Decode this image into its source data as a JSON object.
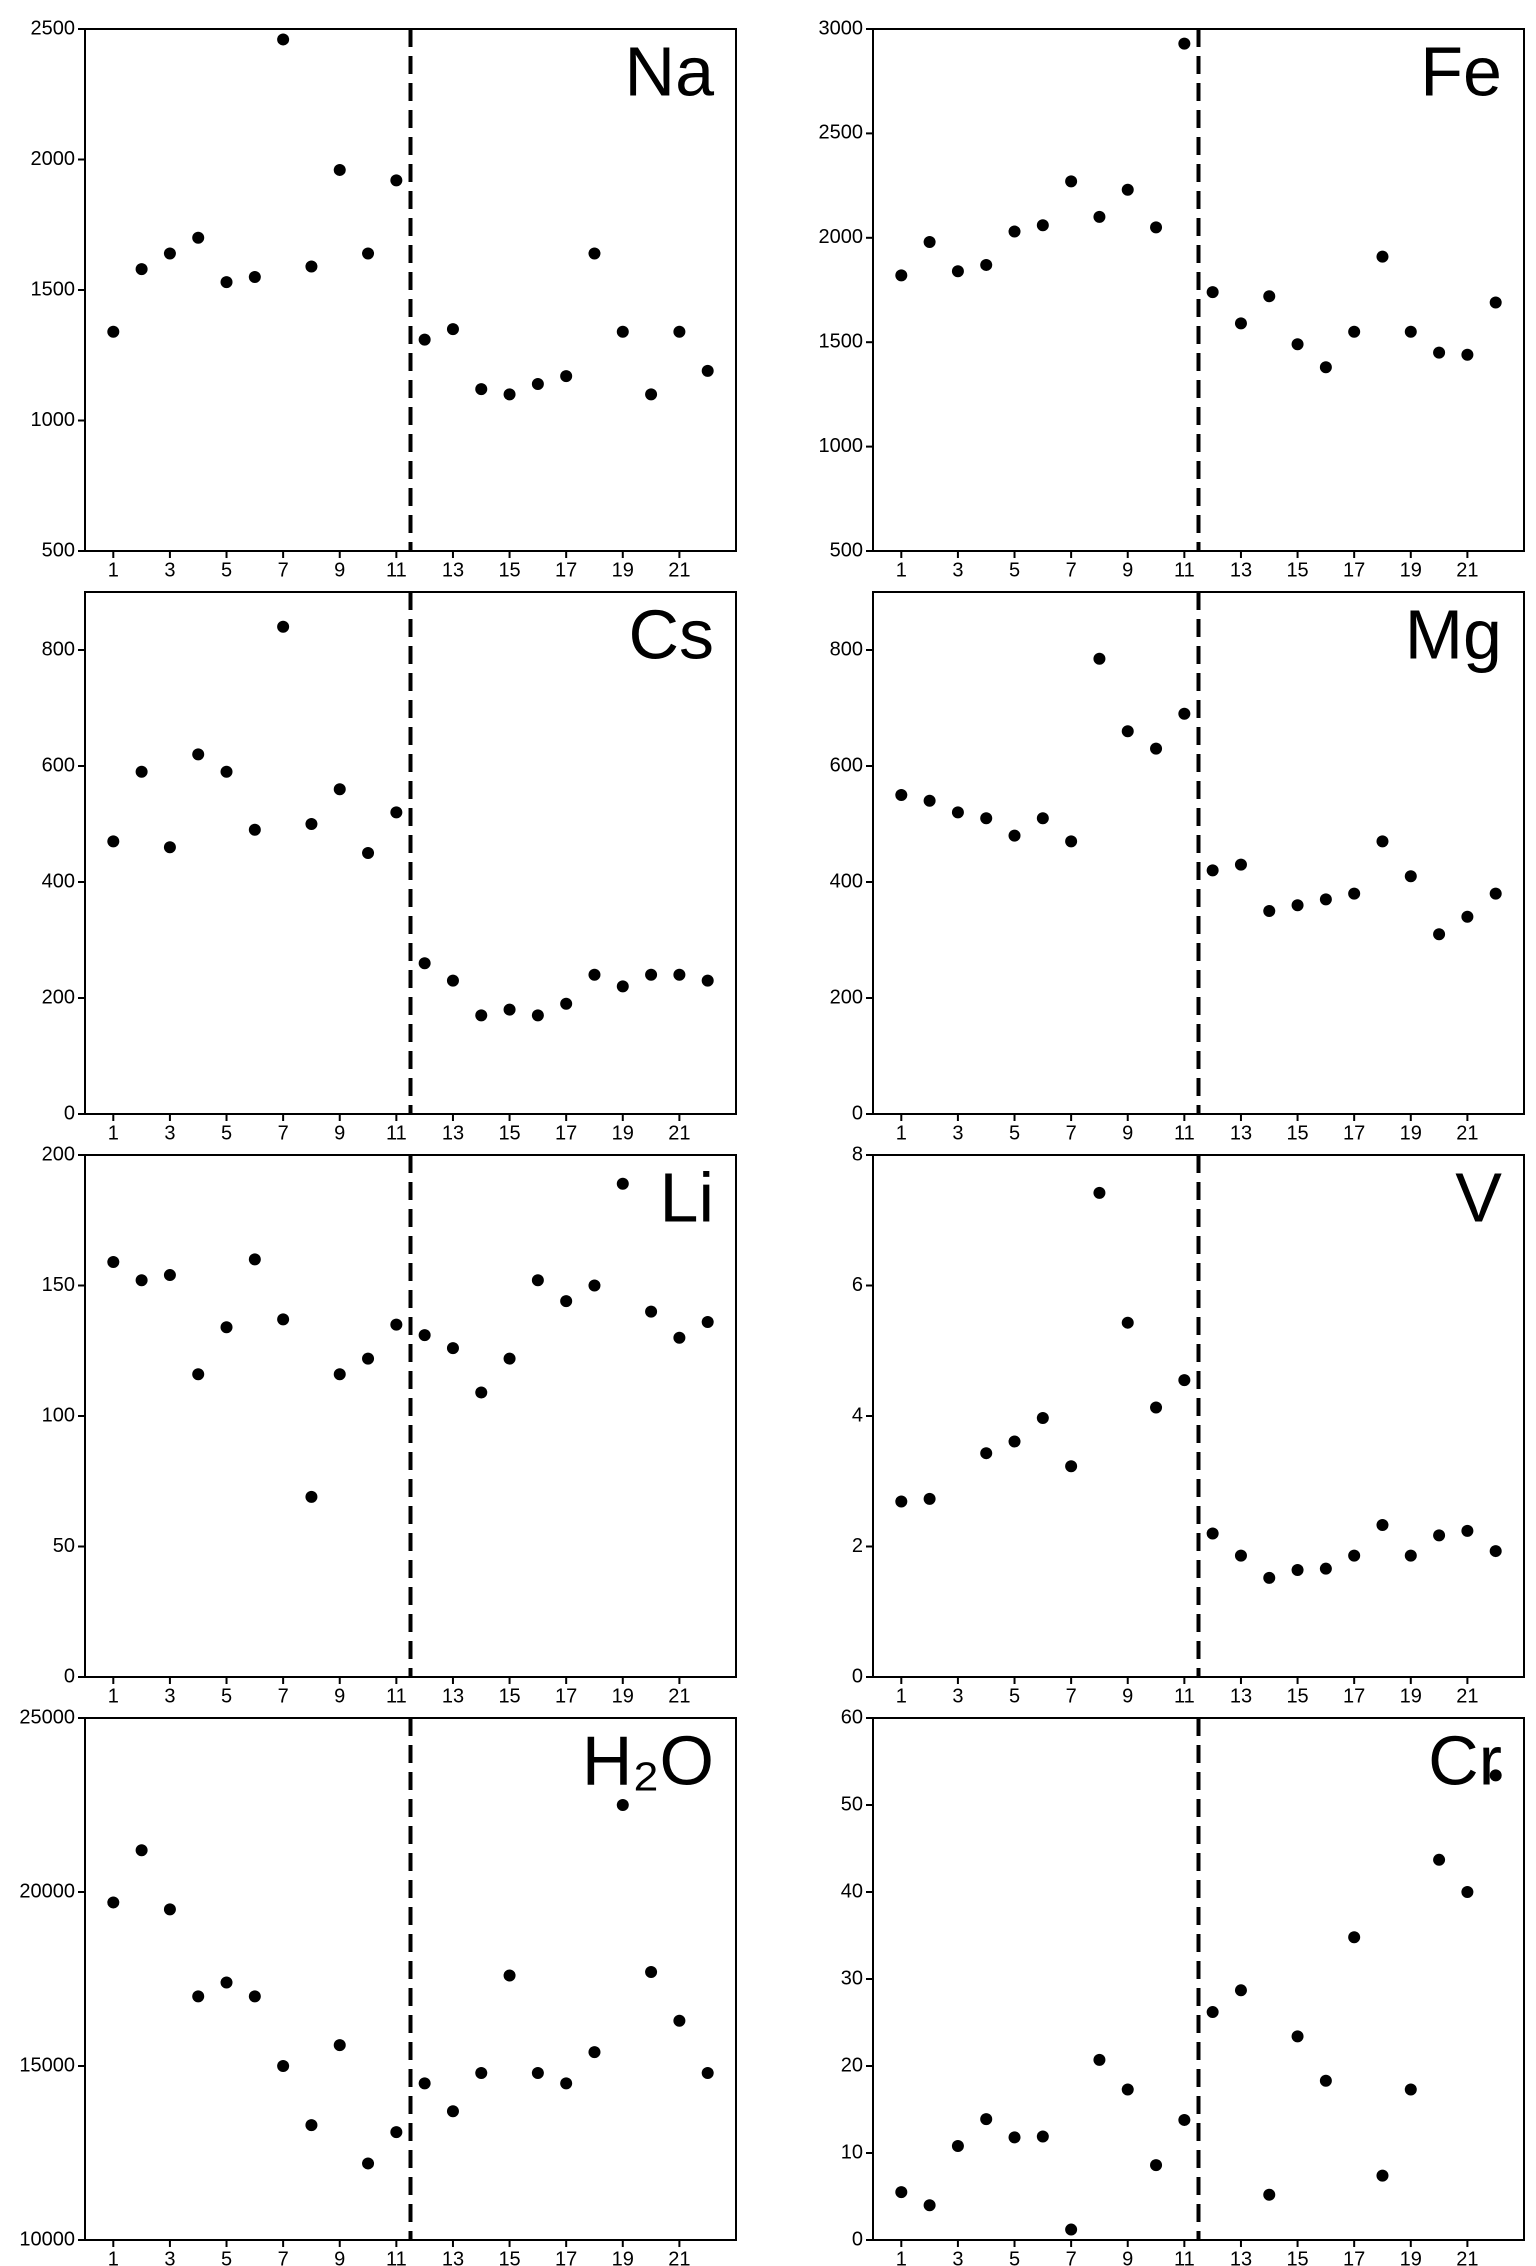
{
  "chart_data": [
    {
      "type": "scatter",
      "title": "Na",
      "color": "#000000",
      "x": [
        1,
        2,
        3,
        4,
        5,
        6,
        7,
        8,
        9,
        10,
        11,
        12,
        13,
        14,
        15,
        16,
        17,
        18,
        19,
        20,
        21,
        22
      ],
      "values": [
        1340,
        1580,
        1640,
        1700,
        1530,
        1550,
        2460,
        1590,
        1960,
        1640,
        1920,
        1310,
        1350,
        1120,
        1100,
        1140,
        1170,
        1640,
        1340,
        1100,
        1340,
        1190
      ],
      "xlim": [
        0,
        23
      ],
      "xticks": [
        1,
        3,
        5,
        7,
        9,
        11,
        13,
        15,
        17,
        19,
        21
      ],
      "ylim": [
        500,
        2500
      ],
      "yticks": [
        500,
        1000,
        1500,
        2000,
        2500
      ],
      "vline": 11.5
    },
    {
      "type": "scatter",
      "title": "Fe",
      "color": "#000000",
      "x": [
        1,
        2,
        3,
        4,
        5,
        6,
        7,
        8,
        9,
        10,
        11,
        12,
        13,
        14,
        15,
        16,
        17,
        18,
        19,
        20,
        21,
        22
      ],
      "values": [
        1820,
        1980,
        1840,
        1870,
        2030,
        2060,
        2270,
        2100,
        2230,
        2050,
        2930,
        1740,
        1590,
        1720,
        1490,
        1380,
        1550,
        1910,
        1550,
        1450,
        1440,
        1690
      ],
      "xlim": [
        0,
        23
      ],
      "xticks": [
        1,
        3,
        5,
        7,
        9,
        11,
        13,
        15,
        17,
        19,
        21
      ],
      "ylim": [
        500,
        3000
      ],
      "yticks": [
        500,
        1000,
        1500,
        2000,
        2500,
        3000
      ],
      "vline": 11.5
    },
    {
      "type": "scatter",
      "title": "Cs",
      "color": "#000000",
      "x": [
        1,
        2,
        3,
        4,
        5,
        6,
        7,
        8,
        9,
        10,
        11,
        12,
        13,
        14,
        15,
        16,
        17,
        18,
        19,
        20,
        21,
        22
      ],
      "values": [
        470,
        590,
        460,
        620,
        590,
        490,
        840,
        500,
        560,
        450,
        520,
        260,
        230,
        170,
        180,
        170,
        190,
        240,
        220,
        240,
        240,
        230
      ],
      "xlim": [
        0,
        23
      ],
      "xticks": [
        1,
        3,
        5,
        7,
        9,
        11,
        13,
        15,
        17,
        19,
        21
      ],
      "ylim": [
        0,
        900
      ],
      "yticks": [
        0,
        200,
        400,
        600,
        800
      ],
      "vline": 11.5
    },
    {
      "type": "scatter",
      "title": "Mg",
      "color": "#000000",
      "x": [
        1,
        2,
        3,
        4,
        5,
        6,
        7,
        8,
        9,
        10,
        11,
        12,
        13,
        14,
        15,
        16,
        17,
        18,
        19,
        20,
        21,
        22
      ],
      "values": [
        550,
        540,
        520,
        510,
        480,
        510,
        470,
        785,
        660,
        630,
        690,
        420,
        430,
        350,
        360,
        370,
        380,
        470,
        410,
        310,
        340,
        380
      ],
      "xlim": [
        0,
        23
      ],
      "xticks": [
        1,
        3,
        5,
        7,
        9,
        11,
        13,
        15,
        17,
        19,
        21
      ],
      "ylim": [
        0,
        900
      ],
      "yticks": [
        0,
        200,
        400,
        600,
        800
      ],
      "vline": 11.5
    },
    {
      "type": "scatter",
      "title": "Li",
      "color": "#000000",
      "x": [
        1,
        2,
        3,
        4,
        5,
        6,
        7,
        8,
        9,
        10,
        11,
        12,
        13,
        14,
        15,
        16,
        17,
        18,
        19,
        20,
        21,
        22
      ],
      "values": [
        159,
        152,
        154,
        116,
        134,
        160,
        137,
        69,
        116,
        122,
        135,
        131,
        126,
        109,
        122,
        152,
        144,
        150,
        189,
        140,
        130,
        136
      ],
      "xlim": [
        0,
        23
      ],
      "xticks": [
        1,
        3,
        5,
        7,
        9,
        11,
        13,
        15,
        17,
        19,
        21
      ],
      "ylim": [
        0,
        200
      ],
      "yticks": [
        0,
        50,
        100,
        150,
        200
      ],
      "vline": 11.5
    },
    {
      "type": "scatter",
      "title": "V",
      "color": "#000000",
      "x": [
        1,
        2,
        3,
        4,
        5,
        6,
        7,
        8,
        9,
        10,
        11,
        12,
        13,
        14,
        15,
        16,
        17,
        18,
        19,
        20,
        21,
        22
      ],
      "values": [
        2.69,
        2.73,
        null,
        3.43,
        3.61,
        3.97,
        3.23,
        7.42,
        5.43,
        4.13,
        4.55,
        2.2,
        1.86,
        1.52,
        1.64,
        1.66,
        1.86,
        2.33,
        1.86,
        2.17,
        2.24,
        1.93
      ],
      "xlim": [
        0,
        23
      ],
      "xticks": [
        1,
        3,
        5,
        7,
        9,
        11,
        13,
        15,
        17,
        19,
        21
      ],
      "ylim": [
        0,
        8
      ],
      "yticks": [
        0,
        2,
        4,
        6,
        8
      ],
      "vline": 11.5
    },
    {
      "type": "scatter",
      "title": "H₂O",
      "color": "#000000",
      "x": [
        1,
        2,
        3,
        4,
        5,
        6,
        7,
        8,
        9,
        10,
        11,
        12,
        13,
        14,
        15,
        16,
        17,
        18,
        19,
        20,
        21,
        22
      ],
      "values": [
        19700,
        21200,
        19500,
        17000,
        17400,
        17000,
        15000,
        13300,
        15600,
        12200,
        13100,
        14500,
        13700,
        14800,
        17600,
        14800,
        14500,
        15400,
        22500,
        17700,
        16300,
        14800
      ],
      "xlim": [
        0,
        23
      ],
      "xticks": [
        1,
        3,
        5,
        7,
        9,
        11,
        13,
        15,
        17,
        19,
        21
      ],
      "ylim": [
        10000,
        25000
      ],
      "yticks": [
        10000,
        15000,
        20000,
        25000
      ],
      "vline": 11.5
    },
    {
      "type": "scatter",
      "title": "Cr",
      "color": "#000000",
      "x": [
        1,
        2,
        3,
        4,
        5,
        6,
        7,
        8,
        9,
        10,
        11,
        12,
        13,
        14,
        15,
        16,
        17,
        18,
        19,
        20,
        21,
        22
      ],
      "values": [
        5.5,
        4.0,
        10.8,
        13.9,
        11.8,
        11.9,
        1.2,
        20.7,
        17.3,
        8.6,
        13.8,
        26.2,
        28.7,
        5.2,
        23.4,
        18.3,
        34.8,
        7.4,
        17.3,
        43.7,
        40.0,
        53.4
      ],
      "xlim": [
        0,
        23
      ],
      "xticks": [
        1,
        3,
        5,
        7,
        9,
        11,
        13,
        15,
        17,
        19,
        21
      ],
      "ylim": [
        0,
        60
      ],
      "yticks": [
        0,
        10,
        20,
        30,
        40,
        50,
        60
      ],
      "vline": 11.5
    }
  ]
}
